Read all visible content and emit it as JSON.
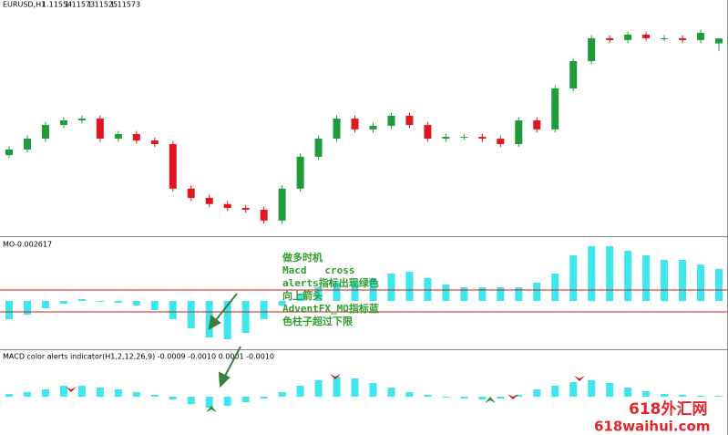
{
  "chart_data": [
    {
      "type": "candlestick",
      "symbol": "EURUSD,H1",
      "open": [
        1.1112,
        1.11142,
        1.11184,
        1.11237,
        1.11255,
        1.11262,
        1.11184,
        1.11202,
        1.11177,
        1.11163,
        1.1099,
        1.10954,
        1.1093,
        1.10915,
        1.10908,
        1.10866,
        1.1099,
        1.11114,
        1.11184,
        1.11262,
        1.1122,
        1.11234,
        1.11273,
        1.11237,
        1.11184,
        1.11191,
        1.11191,
        1.11184,
        1.11163,
        1.11255,
        1.1122,
        1.11379,
        1.11485,
        1.11574,
        1.11567,
        1.11588,
        1.11574,
        1.11574,
        1.11567,
        1.11554
      ],
      "high": [
        1.11154,
        1.11196,
        1.11249,
        1.11267,
        1.11274,
        1.11274,
        1.11214,
        1.11214,
        1.11189,
        1.11175,
        1.11002,
        1.10966,
        1.10942,
        1.10927,
        1.1092,
        1.11002,
        1.11126,
        1.11196,
        1.11274,
        1.11274,
        1.11246,
        1.11285,
        1.11285,
        1.11249,
        1.11203,
        1.11203,
        1.11203,
        1.11196,
        1.11267,
        1.11267,
        1.11391,
        1.11497,
        1.11586,
        1.11586,
        1.116,
        1.116,
        1.11586,
        1.11586,
        1.11607,
        1.11573
      ],
      "low": [
        1.11108,
        1.1113,
        1.11172,
        1.11225,
        1.11243,
        1.11172,
        1.11172,
        1.11165,
        1.11151,
        1.10978,
        1.10942,
        1.10918,
        1.10903,
        1.10896,
        1.10854,
        1.10854,
        1.10978,
        1.11102,
        1.11172,
        1.11208,
        1.11208,
        1.11222,
        1.11225,
        1.11172,
        1.11172,
        1.11179,
        1.11172,
        1.11151,
        1.11151,
        1.11208,
        1.11208,
        1.11367,
        1.11473,
        1.11555,
        1.11555,
        1.11562,
        1.11562,
        1.11555,
        1.11555,
        1.11525
      ],
      "close": [
        1.11142,
        1.11184,
        1.11237,
        1.11255,
        1.11262,
        1.11184,
        1.11202,
        1.11177,
        1.11163,
        1.1099,
        1.10954,
        1.1093,
        1.10915,
        1.10908,
        1.10866,
        1.1099,
        1.11114,
        1.11184,
        1.11262,
        1.1122,
        1.11234,
        1.11273,
        1.11237,
        1.11184,
        1.11191,
        1.11191,
        1.11184,
        1.11163,
        1.11255,
        1.1122,
        1.11379,
        1.11485,
        1.11574,
        1.11567,
        1.11588,
        1.11574,
        1.11574,
        1.11567,
        1.11595,
        1.11573
      ],
      "up_color": "#1f9b3a",
      "down_color": "#e3161f",
      "ylim": [
        1.1083,
        1.1168
      ]
    },
    {
      "type": "bar",
      "title": "MO",
      "current": -0.002617,
      "color": "#3ee6ee",
      "values": [
        -0.002,
        -0.0015,
        -0.0008,
        -0.0003,
        0.0002,
        0,
        -0.0002,
        -0.0005,
        -0.001,
        -0.002,
        -0.003,
        -0.004,
        -0.0042,
        -0.0035,
        -0.002,
        -0.0005,
        0.0008,
        0.0015,
        0.002,
        0.0022,
        0.0025,
        0.003,
        0.0032,
        0.0025,
        0.0018,
        0.0015,
        0.0015,
        0.0015,
        0.0015,
        0.002,
        0.003,
        0.005,
        0.006,
        0.006,
        0.0055,
        0.005,
        0.0045,
        0.0045,
        0.004,
        0.0035
      ],
      "levels": [
        0.0012,
        -0.0012
      ],
      "level_color": "#c81e1e",
      "ylim": [
        -0.0052,
        0.0068
      ]
    },
    {
      "type": "bar",
      "title": "MACD color alerts indicator(H1,2,12,26,9) -0.0009 -0.0010 0.0001 -0.0010",
      "color": "#3ee6ee",
      "values": [
        0.0003,
        0.0005,
        0.0008,
        0.0012,
        0.0012,
        0.001,
        0.0008,
        0.0005,
        0.0002,
        -0.0003,
        -0.0008,
        -0.0012,
        -0.001,
        -0.0006,
        -0.0002,
        0.0005,
        0.0012,
        0.0018,
        0.0022,
        0.002,
        0.0015,
        0.001,
        0.0005,
        0.0002,
        0,
        -0.0002,
        -0.0003,
        -0.0002,
        0.0002,
        0.0008,
        0.0012,
        0.0016,
        0.0018,
        0.0015,
        0.001,
        0.0006,
        0.0003,
        0.0002,
        0.0001,
        0.0001
      ],
      "ylim": [
        -0.0025,
        0.005
      ]
    }
  ],
  "annotations": [
    "做多时机",
    "Macd   cross",
    "alerts指标出现绿色",
    "向上箭头",
    "AdventFX_MO指标蓝",
    "色柱子超过下限"
  ],
  "watermark": [
    "618外汇网",
    "618waihui.com"
  ]
}
